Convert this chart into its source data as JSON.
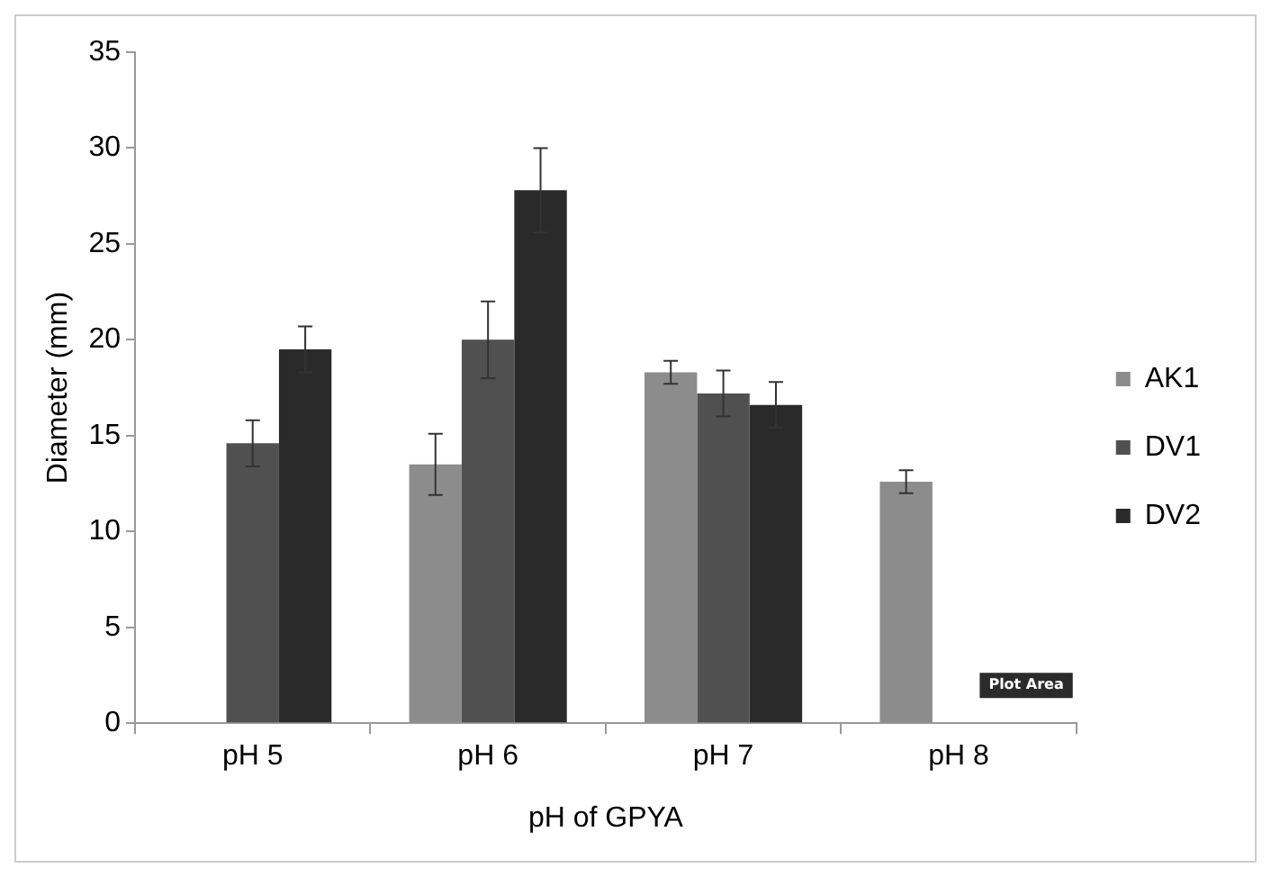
{
  "chart_data": {
    "type": "bar",
    "xlabel": "pH of GPYA",
    "ylabel": "Diameter (mm)",
    "categories": [
      "pH 5",
      "pH 6",
      "pH 7",
      "pH 8"
    ],
    "series": [
      {
        "name": "AK1",
        "color": "#8c8c8c",
        "values": [
          null,
          13.5,
          18.3,
          12.6
        ],
        "errors": [
          null,
          1.6,
          0.6,
          0.6
        ]
      },
      {
        "name": "DV1",
        "color": "#505050",
        "values": [
          14.6,
          20,
          17.2,
          null
        ],
        "errors": [
          1.2,
          2,
          1.2,
          null
        ]
      },
      {
        "name": "DV2",
        "color": "#2a2a2a",
        "values": [
          19.5,
          27.8,
          16.6,
          null
        ],
        "errors": [
          1.2,
          2.2,
          1.2,
          null
        ]
      }
    ],
    "ylim": [
      0,
      35
    ],
    "yticks": [
      0,
      5,
      10,
      15,
      20,
      25,
      30,
      35
    ],
    "grid": false,
    "legend": "right",
    "annotations": [
      "Plot Area"
    ]
  }
}
